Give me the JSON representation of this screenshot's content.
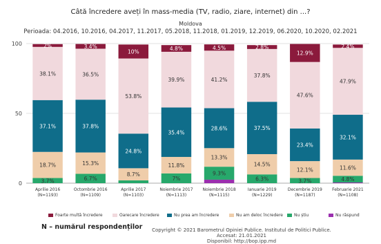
{
  "chart_data": {
    "type": "bar",
    "stacked": true,
    "title": "Câtă încredere aveți în mass-media (TV, radio, ziare, internet) din ...?",
    "subtitle": "Moldova",
    "period": "Perioada: 04.2016, 10.2016, 04.2017, 11.2017, 05.2018, 11.2018, 01.2019, 12.2019, 06.2020, 10.2020, 02.2021",
    "ylim": [
      0,
      100
    ],
    "yticks": [
      "0",
      "50",
      "100"
    ],
    "grid": true,
    "legend_position": "bottom",
    "categories": [
      {
        "label": "Aprilie 2016",
        "n": "(N=1193)"
      },
      {
        "label": "Octombrie 2016",
        "n": "(N=1109)"
      },
      {
        "label": "Aprilie 2017",
        "n": "(N=1103)"
      },
      {
        "label": "Noiembrie 2017",
        "n": "(N=1113)"
      },
      {
        "label": "Noiembrie 2018",
        "n": "(N=1115)"
      },
      {
        "label": "Ianuarie 2019",
        "n": "(N=1229)"
      },
      {
        "label": "Decembrie 2019",
        "n": "(N=1187)"
      },
      {
        "label": "Februarie 2021",
        "n": "(N=1108)"
      }
    ],
    "series": [
      {
        "name": "Nu răspund",
        "color": "#9b2fae",
        "values": [
          0,
          0,
          0,
          0,
          2.5,
          0,
          0,
          0.5
        ],
        "labels": [
          "",
          "",
          "",
          "",
          "",
          "",
          "",
          ""
        ]
      },
      {
        "name": "Nu știu",
        "color": "#27a86b",
        "values": [
          3.7,
          6.7,
          2.0,
          7,
          9.3,
          6.3,
          3.7,
          4.8
        ],
        "labels": [
          "3.7%",
          "6.7%",
          "",
          "7%",
          "9.3%",
          "6.3%",
          "3.7%",
          "4.8%"
        ]
      },
      {
        "name": "Nu am deloc încredere",
        "color": "#efcdaa",
        "values": [
          18.7,
          15.3,
          8.7,
          11.8,
          13.3,
          14.5,
          12.1,
          11.6
        ],
        "labels": [
          "18.7%",
          "15.3%",
          "8.7%",
          "11.8%",
          "13.3%",
          "14.5%",
          "12.1%",
          "11.6%"
        ]
      },
      {
        "name": "Nu prea am încredere",
        "color": "#0f6d8a",
        "values": [
          37.1,
          37.8,
          24.8,
          35.4,
          28.6,
          37.5,
          23.4,
          32.1
        ],
        "labels": [
          "37.1%",
          "37.8%",
          "24.8%",
          "35.4%",
          "28.6%",
          "37.5%",
          "23.4%",
          "32.1%"
        ]
      },
      {
        "name": "Oarecare încredere",
        "color": "#f1d9dd",
        "values": [
          38.1,
          36.5,
          53.8,
          39.9,
          41.2,
          37.8,
          47.6,
          47.9
        ],
        "labels": [
          "38.1%",
          "36.5%",
          "53.8%",
          "39.9%",
          "41.2%",
          "37.8%",
          "47.6%",
          "47.9%"
        ]
      },
      {
        "name": "Foarte multă încredere",
        "color": "#8b1a3c",
        "values": [
          2,
          3.4,
          10,
          4.8,
          4.5,
          2.8,
          12.9,
          2.4
        ],
        "labels": [
          "2%",
          "3.4%",
          "10%",
          "4.8%",
          "4.5%",
          "2.8%",
          "12.9%",
          "2.4%"
        ]
      }
    ],
    "legend_order": [
      "Foarte multă încredere",
      "Oarecare încredere",
      "Nu prea am încredere",
      "Nu am deloc încredere",
      "Nu știu",
      "Nu răspund"
    ]
  },
  "note": "N – numărul respondenților",
  "footer": {
    "line1": "Copyright © 2021 Barometrul Opiniei Publice. Institutul de Politici Publice.",
    "line2": "Accesat: 21.01.2021",
    "line3": "Disponibil: http://bop.ipp.md"
  }
}
